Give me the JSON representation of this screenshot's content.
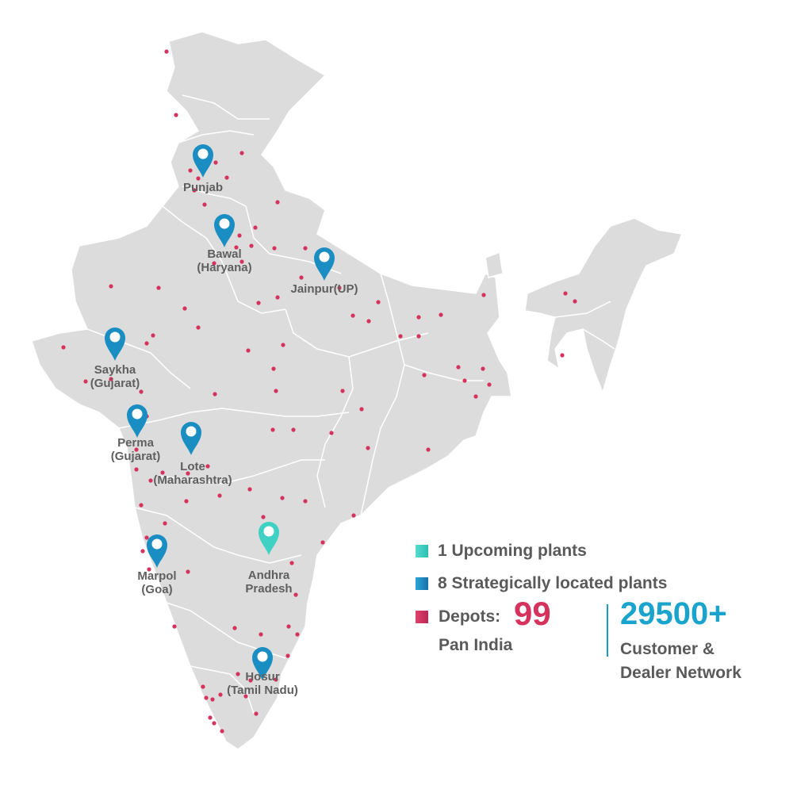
{
  "colors": {
    "land": "#dcdcdc",
    "border": "#ffffff",
    "depot": "#d6325e",
    "plant": "#1a8ec2",
    "upcoming": "#3fd1c4",
    "accent": "#1aa3cc"
  },
  "plants": [
    {
      "label": "Punjab",
      "status": "existing"
    },
    {
      "label": "Bawal\n(Haryana)",
      "status": "existing"
    },
    {
      "label": "Jainpur(UP)",
      "status": "existing"
    },
    {
      "label": "Saykha\n(Gujarat)",
      "status": "existing"
    },
    {
      "label": "Perma\n(Gujarat)",
      "status": "existing"
    },
    {
      "label": "Lote\n(Maharashtra)",
      "status": "existing"
    },
    {
      "label": "Marpol\n(Goa)",
      "status": "existing"
    },
    {
      "label": "Andhra\nPradesh",
      "status": "upcoming"
    },
    {
      "label": "Hosur\n(Tamil Nadu)",
      "status": "existing"
    }
  ],
  "legend": {
    "upcoming": "1 Upcoming plants",
    "strategic": "8 Strategically located plants",
    "depots_label": "Depots:",
    "depots_count": "99",
    "depots_sub": "Pan India",
    "network_count": "29500+",
    "network_line1": "Customer &",
    "network_line2": "Dealer Network"
  }
}
